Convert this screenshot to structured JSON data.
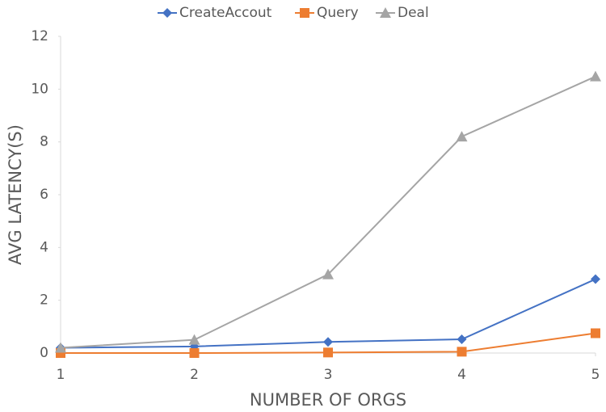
{
  "chart_data": {
    "type": "line",
    "x_label": "NUMBER OF ORGS",
    "y_label": "AVG LATENCY(S)",
    "x": [
      1,
      2,
      3,
      4,
      5
    ],
    "series": [
      {
        "name": "CreateAccout",
        "color": "#4472c4",
        "marker": "diamond",
        "values": [
          0.2,
          0.25,
          0.42,
          0.52,
          2.8
        ]
      },
      {
        "name": "Query",
        "color": "#ed7d31",
        "marker": "square",
        "values": [
          0,
          0,
          0.02,
          0.05,
          0.75
        ]
      },
      {
        "name": "Deal",
        "color": "#a5a5a5",
        "marker": "triangle",
        "values": [
          0.2,
          0.5,
          2.98,
          8.2,
          10.48
        ]
      }
    ],
    "xlim": [
      1,
      5
    ],
    "xticks": [
      1,
      2,
      3,
      4,
      5
    ],
    "ylim": [
      0,
      12
    ],
    "yticks": [
      0,
      2,
      4,
      6,
      8,
      10,
      12
    ],
    "grid": false,
    "legend": "top"
  }
}
